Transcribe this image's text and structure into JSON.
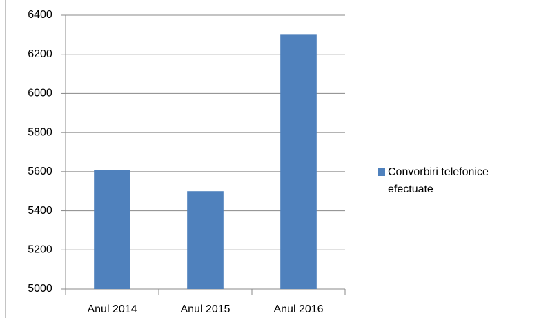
{
  "chart_data": {
    "type": "bar",
    "categories": [
      "Anul 2014",
      "Anul 2015",
      "Anul 2016"
    ],
    "series": [
      {
        "name": "Convorbiri telefonice efectuate",
        "color": "#4f81bd",
        "values": [
          5610,
          5500,
          6300
        ]
      }
    ],
    "ylim": [
      5000,
      6400
    ],
    "yticks": [
      5000,
      5200,
      5400,
      5600,
      5800,
      6000,
      6200,
      6400
    ],
    "grid": true,
    "legend": "right"
  }
}
